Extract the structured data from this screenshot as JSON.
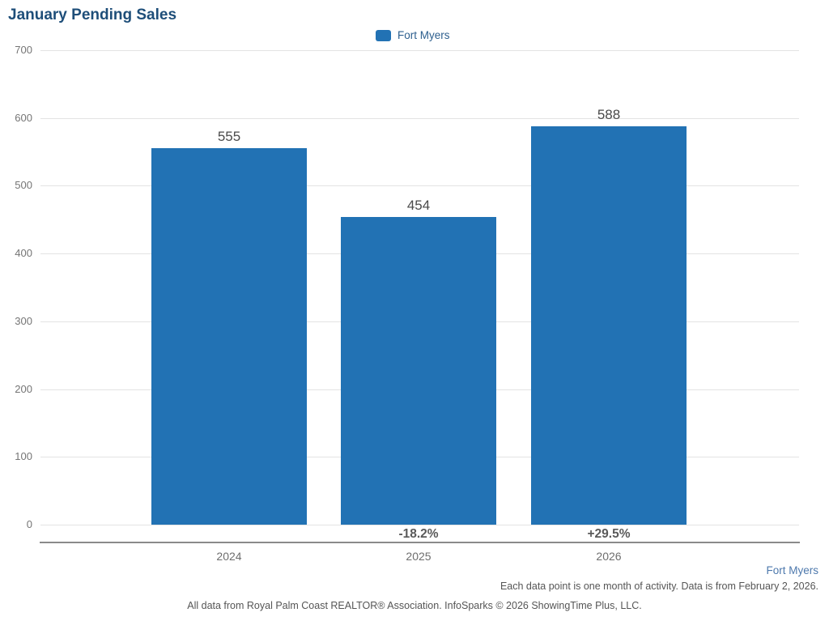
{
  "title": "January Pending Sales",
  "legend": {
    "label": "Fort Myers"
  },
  "chart_data": {
    "type": "bar",
    "title": "January Pending Sales",
    "series_name": "Fort Myers",
    "categories": [
      "2024",
      "2025",
      "2026"
    ],
    "values": [
      555,
      454,
      588
    ],
    "value_labels": [
      "555",
      "454",
      "588"
    ],
    "change_labels": [
      "",
      "-18.2%",
      "+29.5%"
    ],
    "ylim": [
      0,
      700
    ],
    "yticks": [
      0,
      100,
      200,
      300,
      400,
      500,
      600,
      700
    ],
    "grid": true,
    "legend_position": "top-center",
    "bar_color": "#2272b4"
  },
  "footer": {
    "series_label": "Fort Myers",
    "note_right": "Each data point is one month of activity. Data is from February 2, 2026.",
    "note_center": "All data from Royal Palm Coast REALTOR® Association. InfoSparks © 2026 ShowingTime Plus, LLC."
  },
  "colors": {
    "bar": "#2272b4",
    "title": "#1e4e79",
    "legend_text": "#2d5f8e",
    "footer_link": "#4e79ad"
  }
}
